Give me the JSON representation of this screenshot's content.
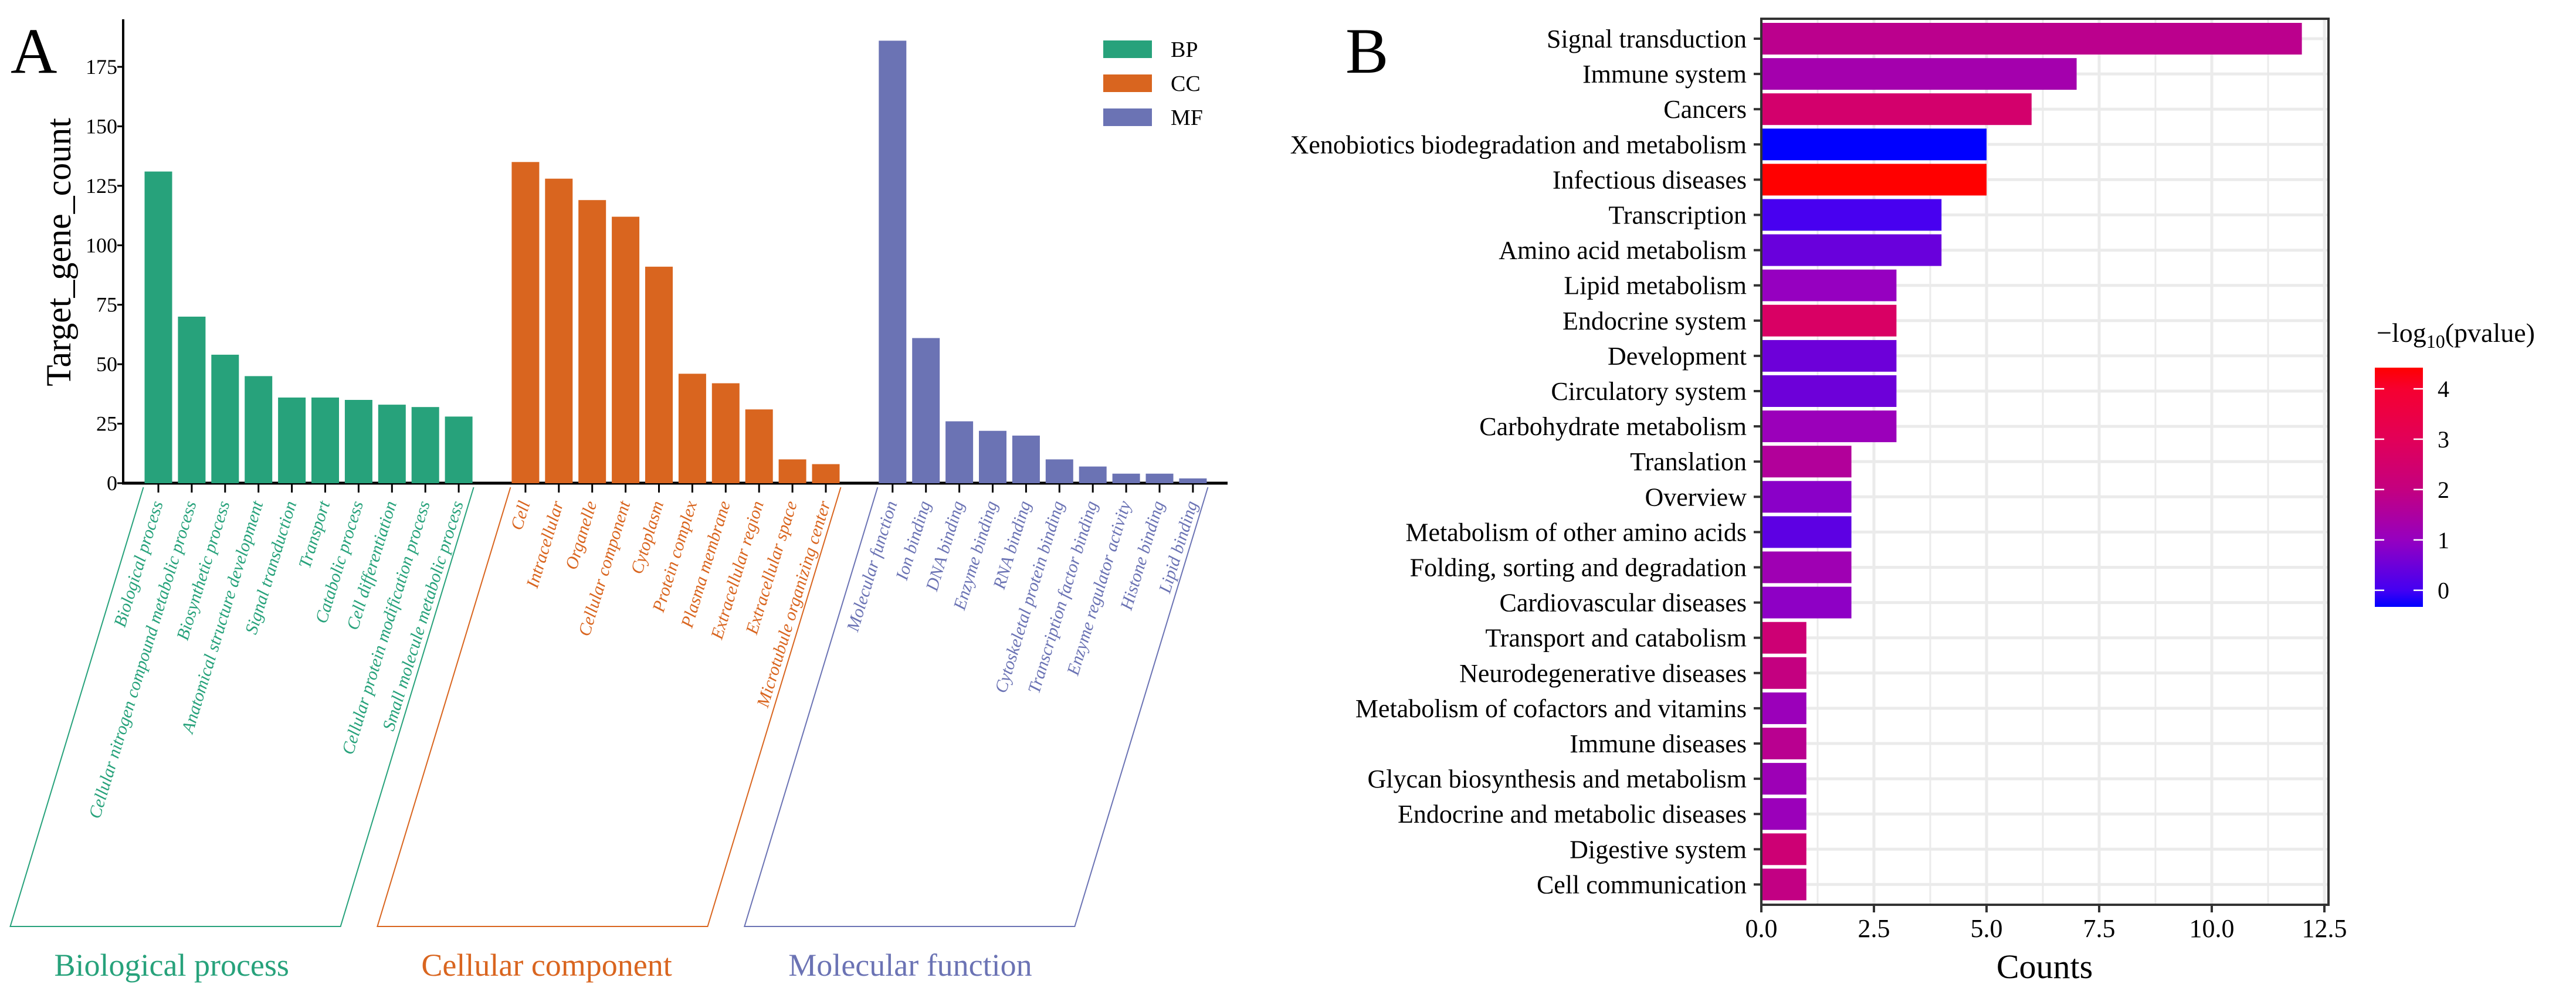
{
  "chart_data": [
    {
      "type": "bar",
      "panel_label": "A",
      "ylabel": "Target_gene_count",
      "ylim": [
        0,
        195
      ],
      "yticks": [
        0,
        25,
        50,
        75,
        100,
        125,
        150,
        175
      ],
      "grid": false,
      "legend": {
        "position": "top-right",
        "entries": [
          {
            "key": "BP",
            "color": "#27A27B"
          },
          {
            "key": "CC",
            "color": "#D9651F"
          },
          {
            "key": "MF",
            "color": "#6B73B4"
          }
        ]
      },
      "groups": [
        {
          "key": "BP",
          "name": "Biological process",
          "color": "#27A27B",
          "categories": [
            "Biological process",
            "Cellular nitrogen compound metabolic process",
            "Biosynthetic process",
            "Anatomical structure development",
            "Signal transduction",
            "Transport",
            "Catabolic process",
            "Cell differentiation",
            "Cellular protein modification process",
            "Small molecule metabolic process"
          ],
          "values": [
            131,
            70,
            54,
            45,
            36,
            36,
            35,
            33,
            32,
            28
          ]
        },
        {
          "key": "CC",
          "name": "Cellular component",
          "color": "#D9651F",
          "categories": [
            "Cell",
            "Intracellular",
            "Organelle",
            "Cellular component",
            "Cytoplasm",
            "Protein complex",
            "Plasma membrane",
            "Extracellular region",
            "Extracellular space",
            "Microtubule organizing center"
          ],
          "values": [
            135,
            128,
            119,
            112,
            91,
            46,
            42,
            31,
            10,
            8
          ]
        },
        {
          "key": "MF",
          "name": "Molecular function",
          "color": "#6B73B4",
          "categories": [
            "Molecular function",
            "Ion binding",
            "DNA binding",
            "Enzyme binding",
            "RNA binding",
            "Cytoskeletal protein binding",
            "Transcription factor binding",
            "Enzyme regulator activity",
            "Histone binding",
            "Lipid binding"
          ],
          "values": [
            186,
            61,
            26,
            22,
            20,
            10,
            7,
            4,
            4,
            2
          ]
        }
      ]
    },
    {
      "type": "bar",
      "orientation": "horizontal",
      "panel_label": "B",
      "xlabel": "Counts",
      "xlim": [
        0,
        12.6
      ],
      "xticks": [
        "0.0",
        "2.5",
        "5.0",
        "7.5",
        "10.0",
        "12.5"
      ],
      "grid": true,
      "categories": [
        "Signal transduction",
        "Immune system",
        "Cancers",
        "Xenobiotics biodegradation and metabolism",
        "Infectious diseases",
        "Transcription",
        "Amino acid metabolism",
        "Lipid metabolism",
        "Endocrine system",
        "Development",
        "Circulatory system",
        "Carbohydrate metabolism",
        "Translation",
        "Overview",
        "Metabolism of other amino acids",
        "Folding, sorting and degradation",
        "Cardiovascular diseases",
        "Transport and catabolism",
        "Neurodegenerative diseases",
        "Metabolism of cofactors and vitamins",
        "Immune diseases",
        "Glycan biosynthesis and metabolism",
        "Endocrine and metabolic diseases",
        "Digestive system",
        "Cell communication"
      ],
      "values": [
        12,
        7,
        6,
        5,
        5,
        4,
        4,
        3,
        3,
        3,
        3,
        3,
        2,
        2,
        2,
        2,
        2,
        1,
        1,
        1,
        1,
        1,
        1,
        1,
        1
      ],
      "neg_log10_pvalue": [
        1.8,
        1.3,
        2.5,
        -0.33,
        4.42,
        0.05,
        0.45,
        1.0,
        2.7,
        0.5,
        0.5,
        1.1,
        1.6,
        0.85,
        0.3,
        1.2,
        0.9,
        2.3,
        2.0,
        1.1,
        1.75,
        1.15,
        1.1,
        2.3,
        1.95
      ],
      "colorbar": {
        "title_main": "−log",
        "title_sub": "10",
        "title_rest": "(pvalue)",
        "ticks": [
          "0",
          "1",
          "2",
          "3",
          "4"
        ],
        "range": [
          -0.33,
          4.42
        ],
        "low_color": "#0000FF",
        "high_color": "#FF0000",
        "stops": [
          [
            -0.33,
            "#0000FF"
          ],
          [
            0,
            "#4400F2"
          ],
          [
            1,
            "#9600C0"
          ],
          [
            2,
            "#C40080"
          ],
          [
            3,
            "#E20058"
          ],
          [
            4,
            "#F60030"
          ],
          [
            4.42,
            "#FF0000"
          ]
        ]
      }
    }
  ]
}
